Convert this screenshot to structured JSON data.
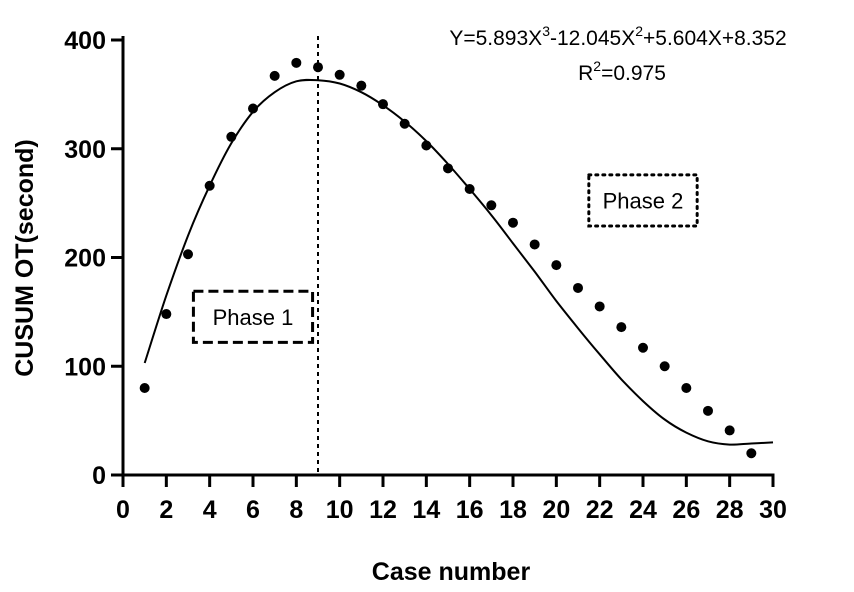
{
  "chart_data": {
    "type": "scatter",
    "xlabel": "Case number",
    "ylabel": "CUSUM OT(second)",
    "xlim": [
      0,
      30
    ],
    "ylim": [
      0,
      400
    ],
    "xticks": [
      "0",
      "2",
      "4",
      "6",
      "8",
      "10",
      "12",
      "14",
      "16",
      "18",
      "20",
      "22",
      "24",
      "26",
      "28",
      "30"
    ],
    "yticks": [
      "0",
      "100",
      "200",
      "300",
      "400"
    ],
    "grid": false,
    "points": {
      "x": [
        1,
        2,
        3,
        4,
        5,
        6,
        7,
        8,
        9,
        10,
        11,
        12,
        13,
        14,
        15,
        16,
        17,
        18,
        19,
        20,
        21,
        22,
        23,
        24,
        25,
        26,
        27,
        28,
        29
      ],
      "y": [
        80,
        148,
        203,
        266,
        311,
        337,
        367,
        379,
        375,
        368,
        358,
        341,
        323,
        303,
        282,
        263,
        248,
        232,
        212,
        193,
        172,
        155,
        136,
        117,
        100,
        80,
        59,
        41,
        20
      ]
    },
    "fit": {
      "equation_prefix": "Y=5.893X",
      "equation_exp1": "3",
      "equation_mid": "-12.045X",
      "equation_exp2": "2",
      "equation_suffix": "+5.604X+8.352",
      "r2_prefix": "R",
      "r2_exp": "2",
      "r2_suffix": "=0.975",
      "curve_x": [
        1,
        2,
        3,
        4,
        5,
        6,
        7,
        8,
        9,
        10,
        11,
        12,
        13,
        14,
        15,
        16,
        17,
        18,
        19,
        20,
        21,
        22,
        23,
        24,
        25,
        26,
        27,
        28,
        29,
        30
      ],
      "curve_y": [
        103,
        165,
        220,
        266,
        305,
        334,
        352,
        362,
        363,
        360,
        352,
        340,
        325,
        307,
        286,
        263,
        239,
        213,
        187,
        160,
        135,
        111,
        88,
        68,
        51,
        39,
        31,
        28,
        29,
        30
      ]
    },
    "divider_x": 9,
    "annotations": [
      {
        "text": "Phase 1",
        "style": "dashed",
        "x1": 3.25,
        "x2": 8.75,
        "y1": 122,
        "y2": 169
      },
      {
        "text": "Phase 2",
        "style": "dotted",
        "x1": 21.5,
        "x2": 26.5,
        "y1": 229,
        "y2": 276
      }
    ]
  }
}
